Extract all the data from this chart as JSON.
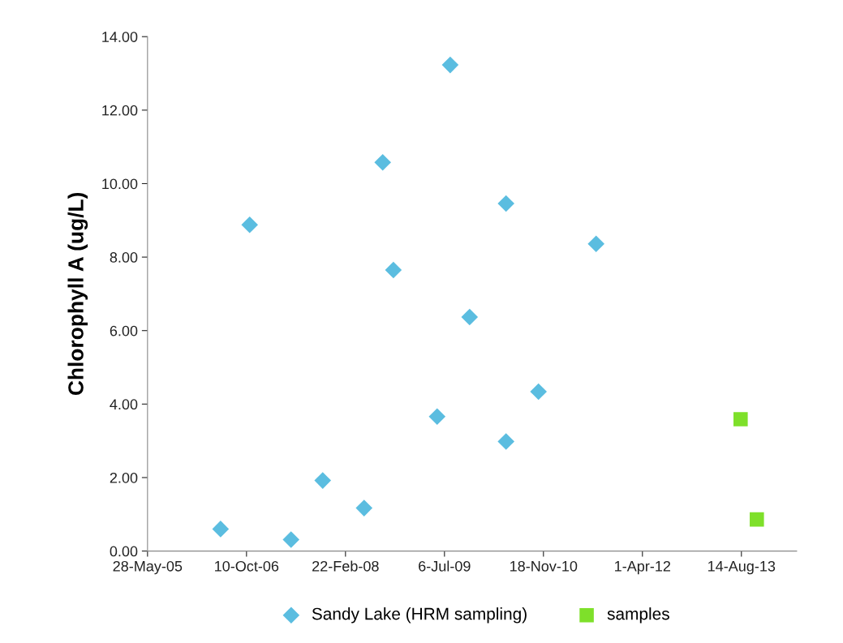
{
  "chart_data": {
    "type": "scatter",
    "ylabel": "Chlorophyll A (ug/L)",
    "xlim": [
      "2005-05-28",
      "2014-05-20"
    ],
    "xticks": [
      {
        "value": "2005-05-28",
        "label": "28-May-05"
      },
      {
        "value": "2006-10-10",
        "label": "10-Oct-06"
      },
      {
        "value": "2008-02-22",
        "label": "22-Feb-08"
      },
      {
        "value": "2009-07-06",
        "label": "6-Jul-09"
      },
      {
        "value": "2010-11-18",
        "label": "18-Nov-10"
      },
      {
        "value": "2012-04-01",
        "label": "1-Apr-12"
      },
      {
        "value": "2013-08-14",
        "label": "14-Aug-13"
      }
    ],
    "ylim": [
      0,
      14
    ],
    "yticks": [
      {
        "value": 0,
        "label": "0.00"
      },
      {
        "value": 2,
        "label": "2.00"
      },
      {
        "value": 4,
        "label": "4.00"
      },
      {
        "value": 6,
        "label": "6.00"
      },
      {
        "value": 8,
        "label": "8.00"
      },
      {
        "value": 10,
        "label": "10.00"
      },
      {
        "value": 12,
        "label": "12.00"
      },
      {
        "value": 14,
        "label": "14.00"
      }
    ],
    "grid": false,
    "legend": "bottom",
    "series": [
      {
        "name": "Sandy Lake (HRM sampling)",
        "color": "#5bbde0",
        "marker": "diamond",
        "x": [
          "2006-06-01",
          "2006-10-26",
          "2007-05-23",
          "2007-10-30",
          "2008-05-26",
          "2008-08-28",
          "2008-10-21",
          "2009-05-30",
          "2009-08-04",
          "2009-11-10",
          "2010-05-13",
          "2010-05-13",
          "2010-10-24",
          "2011-08-11"
        ],
        "values": [
          0.6,
          8.88,
          0.31,
          1.92,
          1.17,
          10.58,
          7.65,
          3.66,
          13.23,
          6.37,
          9.46,
          2.98,
          4.34,
          8.36
        ]
      },
      {
        "name": "samples",
        "color": "#7ee02a",
        "marker": "square",
        "x": [
          "2013-08-10",
          "2013-10-31"
        ],
        "values": [
          3.59,
          0.86
        ]
      }
    ]
  }
}
